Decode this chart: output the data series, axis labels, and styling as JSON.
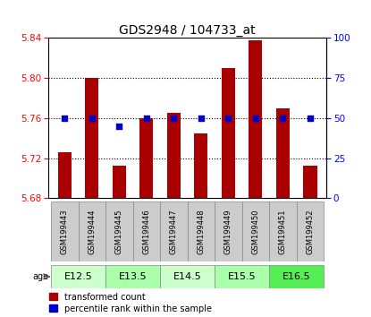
{
  "title": "GDS2948 / 104733_at",
  "samples": [
    "GSM199443",
    "GSM199444",
    "GSM199445",
    "GSM199446",
    "GSM199447",
    "GSM199448",
    "GSM199449",
    "GSM199450",
    "GSM199451",
    "GSM199452"
  ],
  "transformed_count": [
    5.726,
    5.8,
    5.712,
    5.76,
    5.765,
    5.745,
    5.81,
    5.838,
    5.77,
    5.712
  ],
  "percentile_rank": [
    50,
    50,
    45,
    50,
    50,
    50,
    50,
    50,
    50,
    50
  ],
  "age_groups": [
    {
      "label": "E12.5",
      "start": 0,
      "end": 1,
      "color": "#ccffcc"
    },
    {
      "label": "E13.5",
      "start": 2,
      "end": 3,
      "color": "#aaffaa"
    },
    {
      "label": "E14.5",
      "start": 4,
      "end": 5,
      "color": "#ccffcc"
    },
    {
      "label": "E15.5",
      "start": 6,
      "end": 7,
      "color": "#aaffaa"
    },
    {
      "label": "E16.5",
      "start": 8,
      "end": 9,
      "color": "#55ee55"
    }
  ],
  "ylim_left": [
    5.68,
    5.84
  ],
  "ylim_right": [
    0,
    100
  ],
  "yticks_left": [
    5.68,
    5.72,
    5.76,
    5.8,
    5.84
  ],
  "yticks_right": [
    0,
    25,
    50,
    75,
    100
  ],
  "bar_color": "#aa0000",
  "dot_color": "#0000cc",
  "bar_width": 0.5,
  "grid_color": "black",
  "grid_linestyle": "dotted",
  "sample_box_color": "#cccccc",
  "legend_bar_label": "transformed count",
  "legend_dot_label": "percentile rank within the sample",
  "title_fontsize": 10,
  "tick_fontsize": 7.5,
  "sample_fontsize": 6,
  "age_fontsize": 8
}
